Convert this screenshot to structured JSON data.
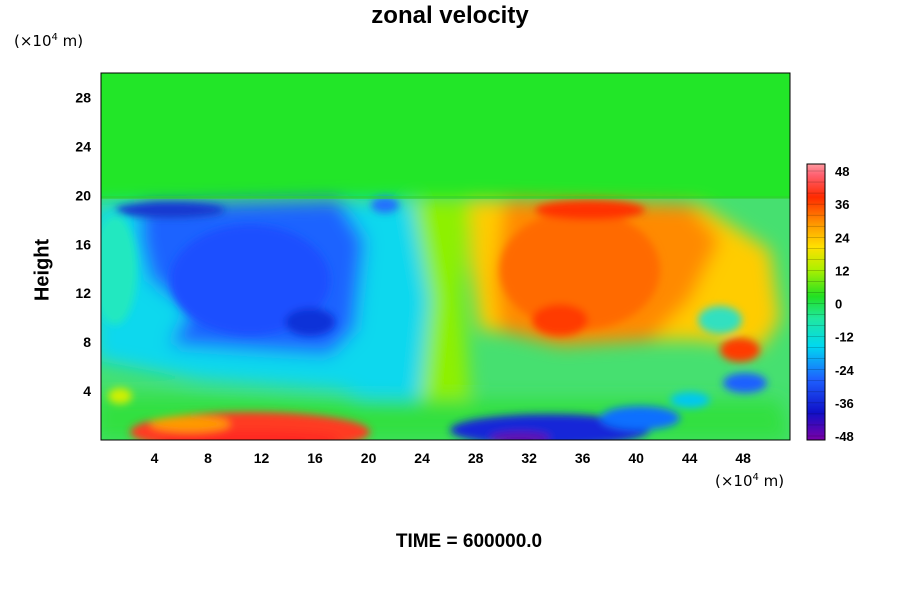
{
  "figure": {
    "title": "zonal velocity",
    "y_unit": "(×10",
    "y_unit_exp": "4",
    "y_unit_tail": " m)",
    "x_unit": "(×10",
    "x_unit_exp": "4",
    "x_unit_tail": " m)",
    "ylabel": "Height",
    "time_label": "TIME = 600000.0"
  },
  "chart_data": {
    "type": "heatmap",
    "title": "zonal velocity",
    "xlabel": "",
    "ylabel": "Height",
    "x_unit": "×10^4 m",
    "y_unit": "×10^4 m",
    "xlim": [
      0,
      51.5
    ],
    "ylim": [
      0,
      30
    ],
    "x_ticks": [
      4,
      8,
      12,
      16,
      20,
      24,
      28,
      32,
      36,
      40,
      44,
      48
    ],
    "y_ticks": [
      4,
      8,
      12,
      16,
      20,
      24,
      28
    ],
    "colorbar": {
      "range": [
        -48,
        48
      ],
      "ticks": [
        48,
        36,
        24,
        12,
        0,
        -12,
        -24,
        -36,
        -48
      ],
      "colormap": "rainbow (purple-blue-cyan-green-yellow-orange-red-pink)"
    },
    "field_features": [
      {
        "region": "upper layer y 20-30",
        "value": 0
      },
      {
        "region": "x 5-20, y 8-20",
        "value": -30
      },
      {
        "region": "x 29-42, y 8-20",
        "value": 28
      },
      {
        "region": "x 5-20, y 0-2",
        "value": 34
      },
      {
        "region": "x 28-38, y 0-1",
        "value": -40
      },
      {
        "region": "x 47-48, y 7",
        "value": 40
      }
    ],
    "time": "TIME = 600000.0",
    "grid": false,
    "legend": "colorbar right"
  }
}
